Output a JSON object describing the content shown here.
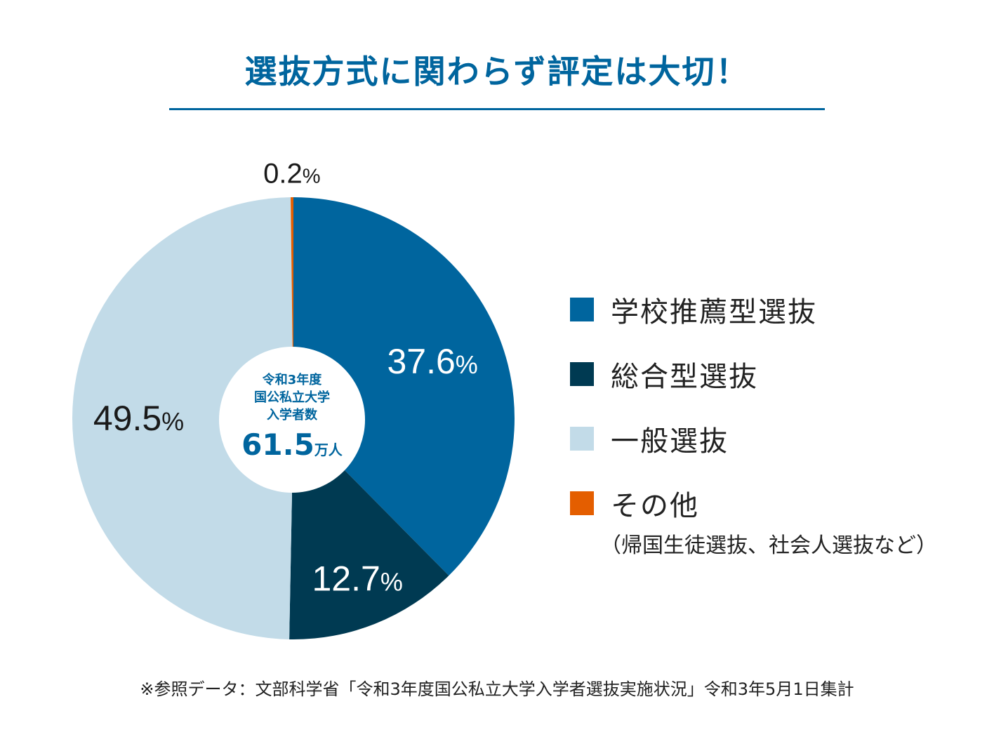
{
  "title": "選抜方式に関わらず評定は大切！",
  "chart_data": {
    "type": "pie",
    "slices": [
      {
        "name": "学校推薦型選抜",
        "value": 37.6,
        "label": "37.6",
        "color": "#00659e"
      },
      {
        "name": "総合型選抜",
        "value": 12.7,
        "label": "12.7",
        "color": "#003a52"
      },
      {
        "name": "一般選抜",
        "value": 49.5,
        "label": "49.5",
        "color": "#c2dbe8"
      },
      {
        "name": "その他",
        "value": 0.2,
        "label": "0.2",
        "color": "#e45e00"
      }
    ],
    "unit": "%",
    "center_text": {
      "line1": "令和3年度",
      "line2": "国公私立大学",
      "line3": "入学者数",
      "value": "61.5",
      "unit": "万人"
    }
  },
  "legend": {
    "items": [
      {
        "label": "学校推薦型選抜",
        "color": "#00659e"
      },
      {
        "label": "総合型選抜",
        "color": "#003a52"
      },
      {
        "label": "一般選抜",
        "color": "#c2dbe8"
      },
      {
        "label": "その他",
        "color": "#e45e00"
      }
    ],
    "note": "（帰国生徒選抜、社会人選抜など）"
  },
  "source": "※参照データ：文部科学省「令和3年度国公私立大学入学者選抜実施状況」令和3年5月1日集計"
}
